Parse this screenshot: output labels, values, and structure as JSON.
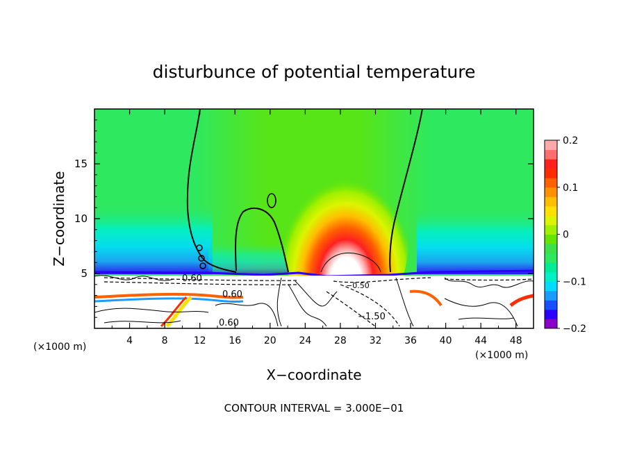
{
  "chart_data": {
    "type": "heatmap",
    "title": "disturbunce of potential temperature",
    "xlabel": "X−coordinate",
    "ylabel": "Z−coordinate",
    "x_unit_left": "(×1000 m)",
    "x_unit_right": "(×1000 m)",
    "xlim": [
      0,
      50
    ],
    "ylim": [
      0,
      20
    ],
    "xticks": [
      4,
      8,
      12,
      16,
      20,
      24,
      28,
      32,
      36,
      40,
      44,
      48
    ],
    "yticks": [
      5,
      10,
      15
    ],
    "colorbar": {
      "range": [
        -0.2,
        0.2
      ],
      "tick_labels": [
        {
          "value": 0.2,
          "label": "0.2"
        },
        {
          "value": 0.1,
          "label": "0.1"
        },
        {
          "value": 0.0,
          "label": "0"
        },
        {
          "value": -0.1,
          "label": "−0.1"
        },
        {
          "value": -0.2,
          "label": "−0.2"
        }
      ],
      "colors": [
        "#8b00c8",
        "#2b00ff",
        "#1850ff",
        "#1a9cff",
        "#00dcff",
        "#00f0c8",
        "#00ec96",
        "#2ee860",
        "#3ce048",
        "#66e400",
        "#a0f000",
        "#dcf400",
        "#ffe000",
        "#ffbe00",
        "#ff9000",
        "#ff6000",
        "#ff2c00",
        "#ff2020",
        "#ff6e6e",
        "#ffaaaa"
      ]
    },
    "contour_labels": [
      "0.60",
      "0.60",
      "0.60",
      "−1.50",
      "−0.50"
    ],
    "footer": "CONTOUR INTERVAL = 3.000E−01"
  }
}
